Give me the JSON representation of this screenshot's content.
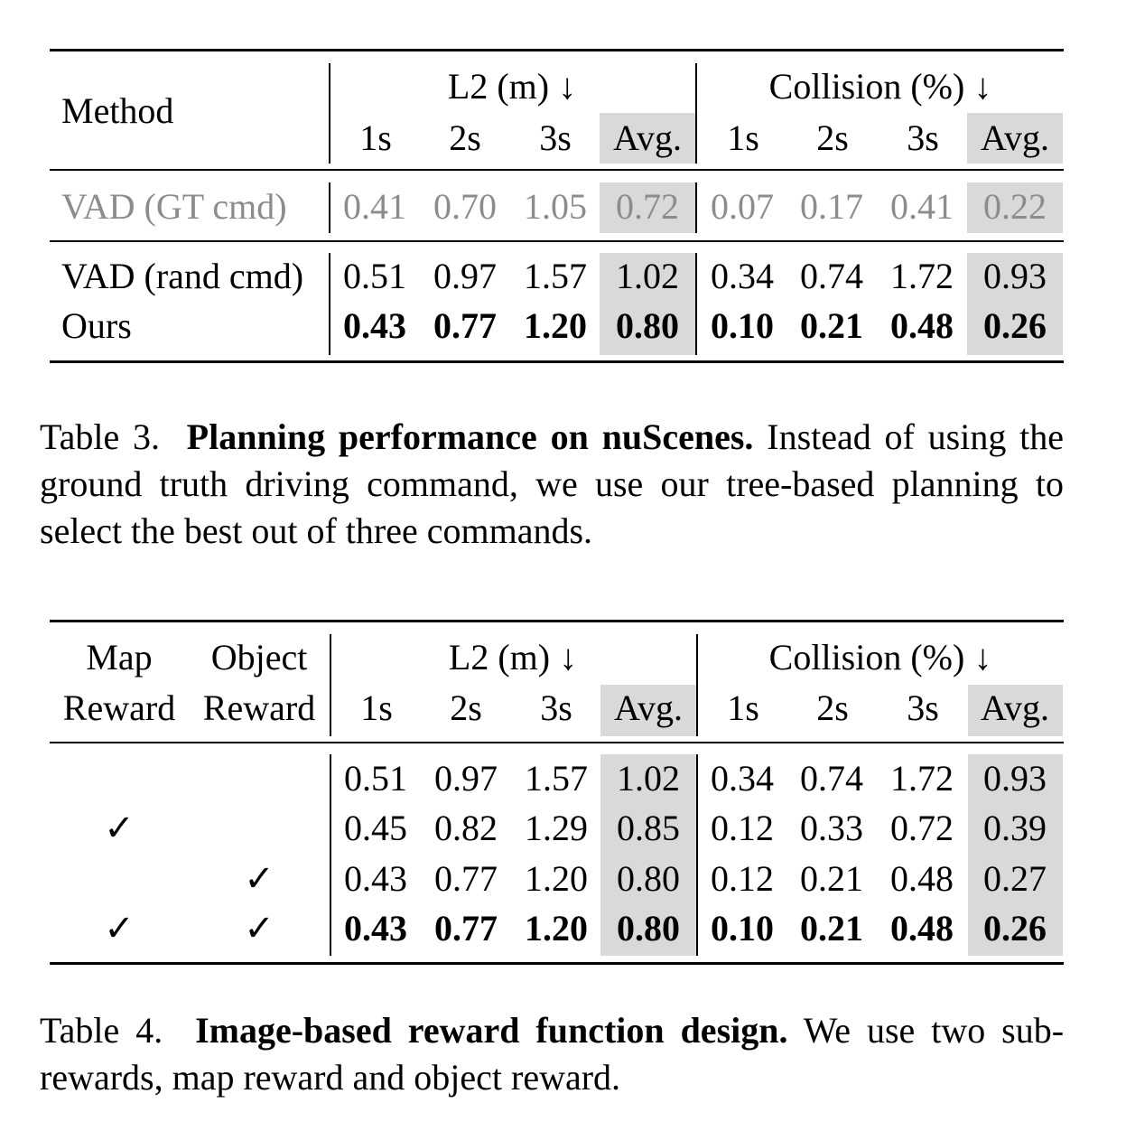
{
  "table3": {
    "header": {
      "method": "Method",
      "l2": "L2 (m) ↓",
      "collision": "Collision (%) ↓",
      "cols": [
        "1s",
        "2s",
        "3s",
        "Avg.",
        "1s",
        "2s",
        "3s",
        "Avg."
      ]
    },
    "rows": [
      {
        "method": "VAD (GT cmd)",
        "values": [
          "0.41",
          "0.70",
          "1.05",
          "0.72",
          "0.07",
          "0.17",
          "0.41",
          "0.22"
        ]
      },
      {
        "method": "VAD (rand cmd)",
        "values": [
          "0.51",
          "0.97",
          "1.57",
          "1.02",
          "0.34",
          "0.74",
          "1.72",
          "0.93"
        ]
      },
      {
        "method": "Ours",
        "values": [
          "0.43",
          "0.77",
          "1.20",
          "0.80",
          "0.10",
          "0.21",
          "0.48",
          "0.26"
        ]
      }
    ],
    "caption": {
      "label": "Table 3.",
      "title": "Planning performance on nuScenes.",
      "text": "Instead of using the ground truth driving command, we use our tree-based planning to select the best out of three commands."
    }
  },
  "table4": {
    "header": {
      "map_line1": "Map",
      "map_line2": "Reward",
      "object_line1": "Object",
      "object_line2": "Reward",
      "l2": "L2 (m) ↓",
      "collision": "Collision (%) ↓",
      "cols": [
        "1s",
        "2s",
        "3s",
        "Avg.",
        "1s",
        "2s",
        "3s",
        "Avg."
      ]
    },
    "rows": [
      {
        "map": "",
        "object": "",
        "values": [
          "0.51",
          "0.97",
          "1.57",
          "1.02",
          "0.34",
          "0.74",
          "1.72",
          "0.93"
        ]
      },
      {
        "map": "✓",
        "object": "",
        "values": [
          "0.45",
          "0.82",
          "1.29",
          "0.85",
          "0.12",
          "0.33",
          "0.72",
          "0.39"
        ]
      },
      {
        "map": "",
        "object": "✓",
        "values": [
          "0.43",
          "0.77",
          "1.20",
          "0.80",
          "0.12",
          "0.21",
          "0.48",
          "0.27"
        ]
      },
      {
        "map": "✓",
        "object": "✓",
        "values": [
          "0.43",
          "0.77",
          "1.20",
          "0.80",
          "0.10",
          "0.21",
          "0.48",
          "0.26"
        ]
      }
    ],
    "caption": {
      "label": "Table 4.",
      "title": "Image-based reward function design.",
      "text": "We use two sub-rewards, map reward and object reward."
    }
  }
}
